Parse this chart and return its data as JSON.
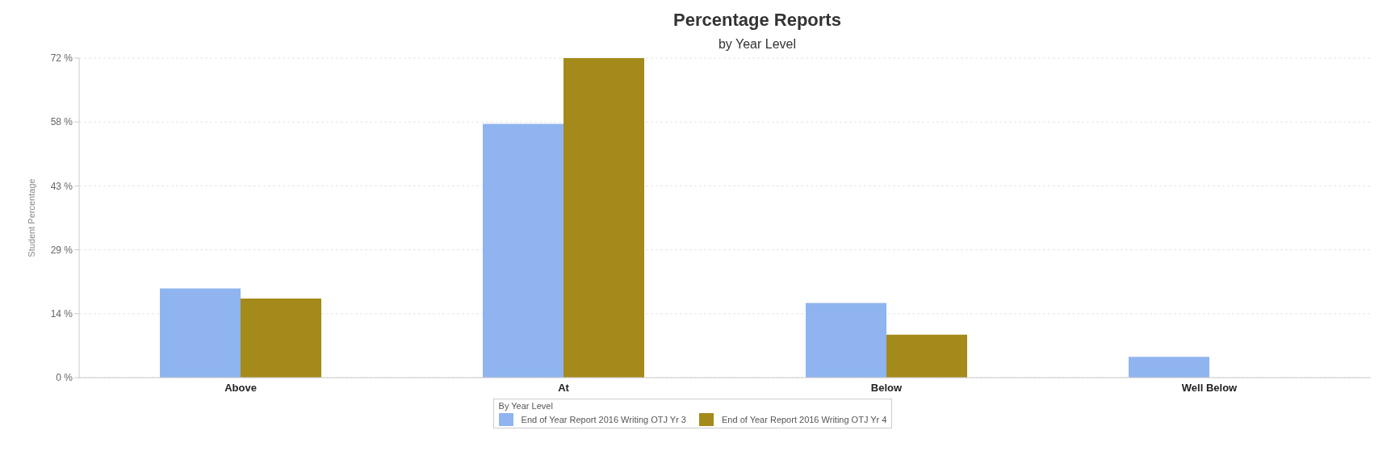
{
  "chart_data": {
    "type": "bar",
    "title": "Percentage Reports",
    "subtitle": "by Year Level",
    "ylabel": "Student Percentage",
    "legend_title": "By Year Level",
    "categories": [
      "Above",
      "At",
      "Below",
      "Well Below"
    ],
    "series": [
      {
        "name": "End of Year Report 2016 Writing OTJ Yr 3",
        "color": "#8fb4f0",
        "values": [
          20.1,
          57.2,
          16.8,
          4.7
        ]
      },
      {
        "name": "End of Year Report 2016 Writing OTJ Yr 4",
        "color": "#a48a1a",
        "values": [
          17.8,
          72,
          9.7,
          null
        ]
      }
    ],
    "ylim": [
      0,
      72
    ],
    "yticks": [
      {
        "value": 0,
        "label": "0 %"
      },
      {
        "value": 14.4,
        "label": "14 %"
      },
      {
        "value": 28.8,
        "label": "29 %"
      },
      {
        "value": 43.2,
        "label": "43 %"
      },
      {
        "value": 57.6,
        "label": "58 %"
      },
      {
        "value": 72,
        "label": "72 %"
      }
    ],
    "grid": "y",
    "legend": "bottom"
  }
}
